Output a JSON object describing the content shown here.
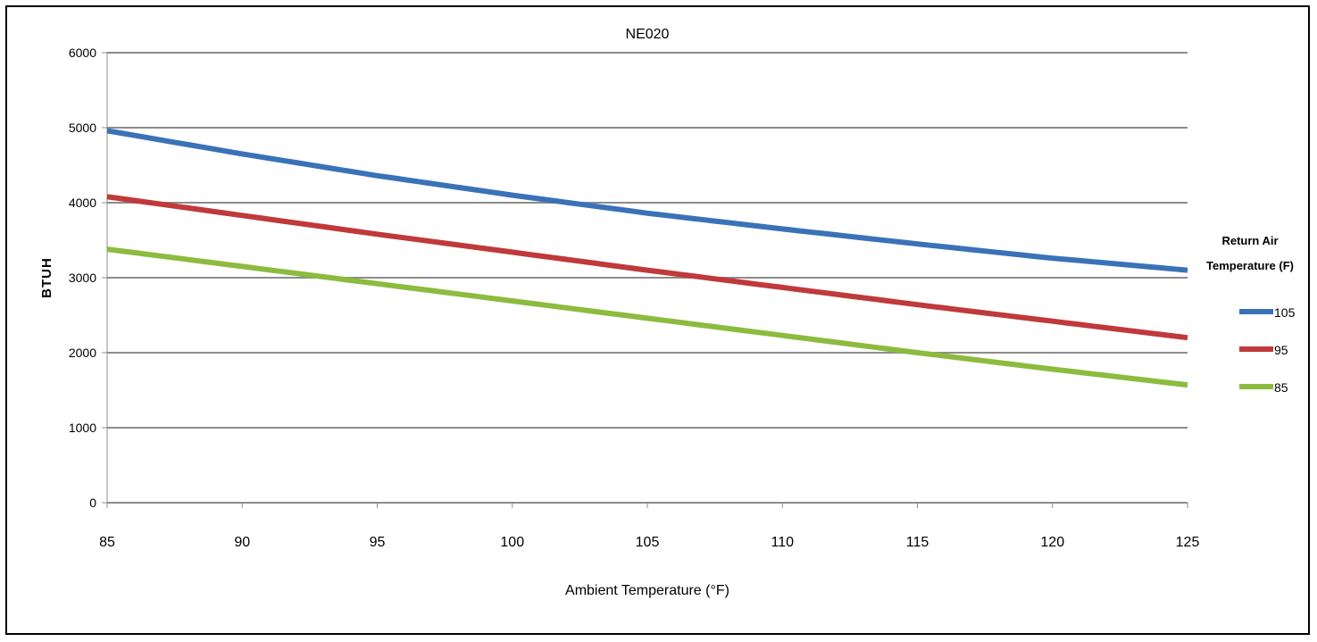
{
  "chart_data": {
    "type": "line",
    "title": "NE020",
    "xlabel": "Ambient Temperature (°F)",
    "ylabel": "BTUH",
    "xlim": [
      85,
      125
    ],
    "ylim": [
      0,
      6000
    ],
    "xticks": [
      85,
      90,
      95,
      100,
      105,
      110,
      115,
      120,
      125
    ],
    "yticks": [
      0,
      1000,
      2000,
      3000,
      4000,
      5000,
      6000
    ],
    "grid": "horizontal",
    "legend": {
      "title_line1": "Return Air",
      "title_line2": "Temperature (F)",
      "placement": "right"
    },
    "x": [
      85,
      90,
      95,
      100,
      105,
      110,
      115,
      120,
      125
    ],
    "series": [
      {
        "name": "105",
        "color": "#3a72b8",
        "values": [
          4960,
          4650,
          4360,
          4100,
          3860,
          3650,
          3450,
          3260,
          3100
        ]
      },
      {
        "name": "95",
        "color": "#c0393b",
        "values": [
          4080,
          3830,
          3580,
          3340,
          3100,
          2870,
          2640,
          2420,
          2200
        ]
      },
      {
        "name": "85",
        "color": "#8cbb3e",
        "values": [
          3380,
          3150,
          2920,
          2690,
          2460,
          2230,
          2000,
          1780,
          1570
        ]
      }
    ]
  }
}
